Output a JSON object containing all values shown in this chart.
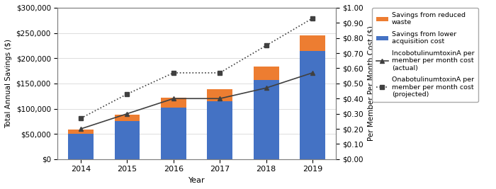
{
  "years": [
    2014,
    2015,
    2016,
    2017,
    2018,
    2019
  ],
  "blue_bars": [
    50000,
    75000,
    102000,
    115000,
    157000,
    215000
  ],
  "orange_bars": [
    8000,
    13000,
    20000,
    23000,
    27000,
    30000
  ],
  "incobotA": [
    0.2,
    0.3,
    0.4,
    0.4,
    0.47,
    0.57
  ],
  "onabotA": [
    0.27,
    0.43,
    0.57,
    0.57,
    0.75,
    0.93
  ],
  "bar_color_blue": "#4472C4",
  "bar_color_orange": "#ED7D31",
  "line_color": "#404040",
  "ylabel_left": "Total Annual Savings ($)",
  "ylabel_right": "Per Member Per Month Cost ($)",
  "xlabel": "Year",
  "ylim_left": [
    0,
    300000
  ],
  "ylim_right": [
    0.0,
    1.0
  ],
  "yticks_left": [
    0,
    50000,
    100000,
    150000,
    200000,
    250000,
    300000
  ],
  "yticks_right": [
    0.0,
    0.1,
    0.2,
    0.3,
    0.4,
    0.5,
    0.6,
    0.7,
    0.8,
    0.9,
    1.0
  ],
  "legend_incobotA": "IncobotulinumtoxinA per\nmember per month cost\n(actual)",
  "legend_onabotA": "OnabotulinumtoxinA per\nmember per month cost\n(projected)",
  "legend_blue": "Savings from lower\nacquisition cost",
  "legend_orange": "Savings from reduced\nwaste",
  "bar_width": 0.55
}
